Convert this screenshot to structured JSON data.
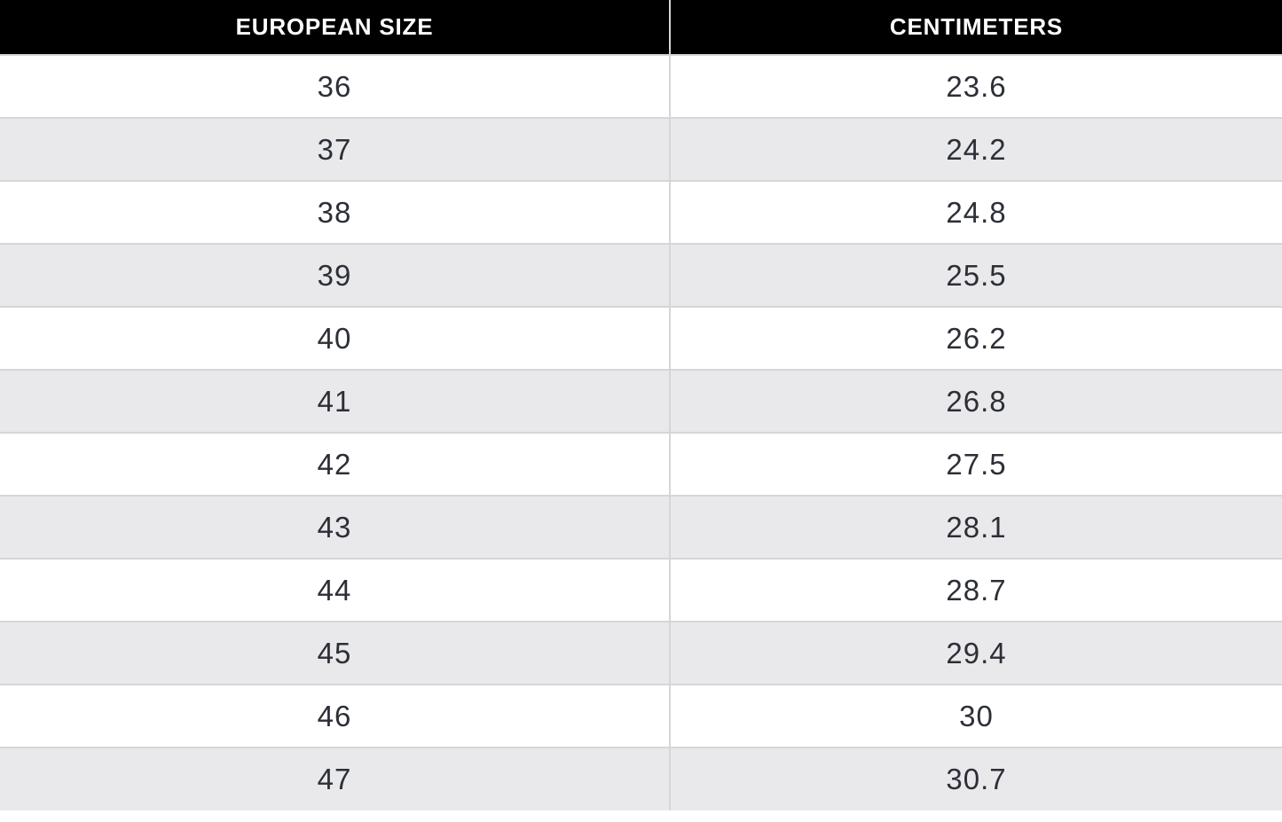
{
  "table": {
    "columns": [
      {
        "label": "EUROPEAN SIZE"
      },
      {
        "label": "CENTIMETERS"
      }
    ],
    "rows": [
      {
        "eu": "36",
        "cm": "23.6"
      },
      {
        "eu": "37",
        "cm": "24.2"
      },
      {
        "eu": "38",
        "cm": "24.8"
      },
      {
        "eu": "39",
        "cm": "25.5"
      },
      {
        "eu": "40",
        "cm": "26.2"
      },
      {
        "eu": "41",
        "cm": "26.8"
      },
      {
        "eu": "42",
        "cm": "27.5"
      },
      {
        "eu": "43",
        "cm": "28.1"
      },
      {
        "eu": "44",
        "cm": "28.7"
      },
      {
        "eu": "45",
        "cm": "29.4"
      },
      {
        "eu": "46",
        "cm": "30"
      },
      {
        "eu": "47",
        "cm": "30.7"
      }
    ]
  },
  "colors": {
    "header_bg": "#000000",
    "header_text": "#ffffff",
    "row_bg": "#ffffff",
    "row_alt_bg": "#e9e9eb",
    "border": "#d6d6d9",
    "cell_text": "#2c2f37"
  },
  "chart_data": {
    "type": "table",
    "title": "",
    "columns": [
      "EUROPEAN SIZE",
      "CENTIMETERS"
    ],
    "rows": [
      [
        36,
        23.6
      ],
      [
        37,
        24.2
      ],
      [
        38,
        24.8
      ],
      [
        39,
        25.5
      ],
      [
        40,
        26.2
      ],
      [
        41,
        26.8
      ],
      [
        42,
        27.5
      ],
      [
        43,
        28.1
      ],
      [
        44,
        28.7
      ],
      [
        45,
        29.4
      ],
      [
        46,
        30
      ],
      [
        47,
        30.7
      ]
    ],
    "layout_hints": {
      "header_style": "black background, white bold uppercase text",
      "row_striping": "alternating white and light gray, starting white",
      "last_row_clipped": true
    }
  }
}
